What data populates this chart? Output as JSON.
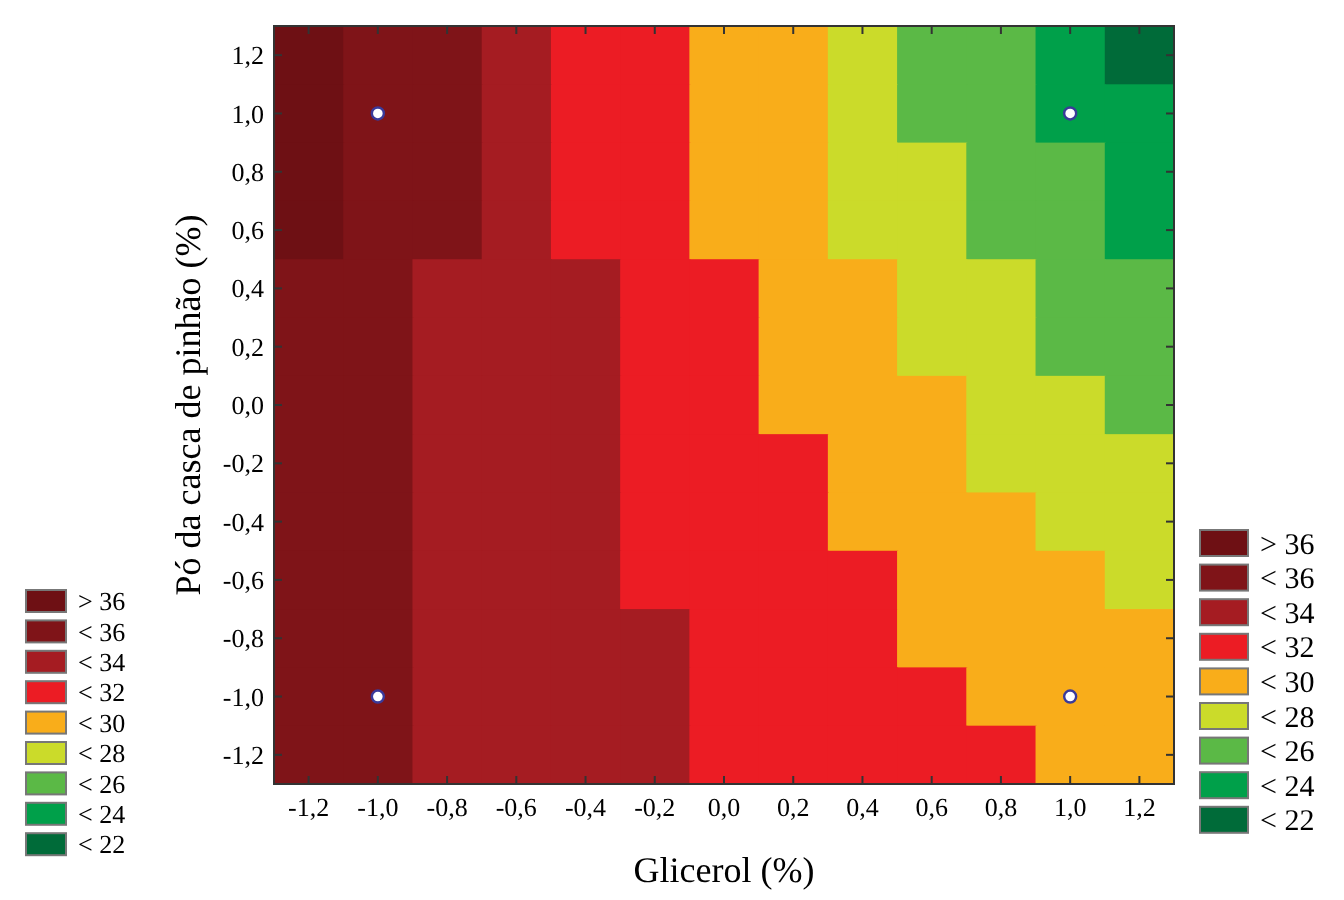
{
  "chart_data": {
    "type": "heatmap",
    "xlabel": "Glicerol (%)",
    "ylabel": "Pó da casca de pinhão (%)",
    "categories": [
      "-1,2",
      "-1,0",
      "-0,8",
      "-0,6",
      "-0,4",
      "-0,2",
      "0,0",
      "0,2",
      "0,4",
      "0,6",
      "0,8",
      "1,0",
      "1,2"
    ],
    "ylim": [
      -1.3,
      1.3
    ],
    "yticks": [
      {
        "value": -1.2,
        "label": "-1,2"
      },
      {
        "value": -1.0,
        "label": "-1,0"
      },
      {
        "value": -0.8,
        "label": "-0,8"
      },
      {
        "value": -0.6,
        "label": "-0,6"
      },
      {
        "value": -0.4,
        "label": "-0,4"
      },
      {
        "value": -0.2,
        "label": "-0,2"
      },
      {
        "value": 0,
        "label": "0,0"
      },
      {
        "value": 0.2,
        "label": "0,2"
      },
      {
        "value": 0.4,
        "label": "0,4"
      },
      {
        "value": 0.6,
        "label": "0,6"
      },
      {
        "value": 0.8,
        "label": "0,8"
      },
      {
        "value": 1.0,
        "label": "1,0"
      },
      {
        "value": 1.2,
        "label": "1,2"
      }
    ],
    "cells": [
      [
        38,
        36,
        36,
        34,
        32,
        32,
        30,
        30,
        28,
        26,
        26,
        24,
        22
      ],
      [
        38,
        36,
        36,
        34,
        32,
        32,
        30,
        30,
        28,
        26,
        26,
        24,
        24
      ],
      [
        38,
        36,
        36,
        34,
        32,
        32,
        30,
        30,
        28,
        28,
        26,
        26,
        24
      ],
      [
        38,
        36,
        36,
        34,
        32,
        32,
        30,
        30,
        28,
        28,
        26,
        26,
        24
      ],
      [
        36,
        36,
        34,
        34,
        34,
        32,
        32,
        30,
        30,
        28,
        28,
        26,
        26
      ],
      [
        36,
        36,
        34,
        34,
        34,
        32,
        32,
        30,
        30,
        28,
        28,
        26,
        26
      ],
      [
        36,
        36,
        34,
        34,
        34,
        32,
        32,
        30,
        30,
        30,
        28,
        28,
        26
      ],
      [
        36,
        36,
        34,
        34,
        34,
        32,
        32,
        32,
        30,
        30,
        28,
        28,
        28
      ],
      [
        36,
        36,
        34,
        34,
        34,
        32,
        32,
        32,
        30,
        30,
        30,
        28,
        28
      ],
      [
        36,
        36,
        34,
        34,
        34,
        32,
        32,
        32,
        32,
        30,
        30,
        30,
        28
      ],
      [
        36,
        36,
        34,
        34,
        34,
        34,
        32,
        32,
        32,
        30,
        30,
        30,
        30
      ],
      [
        36,
        36,
        34,
        34,
        34,
        34,
        32,
        32,
        32,
        32,
        30,
        30,
        30
      ],
      [
        36,
        36,
        34,
        34,
        34,
        34,
        32,
        32,
        32,
        32,
        32,
        30,
        30
      ]
    ],
    "cticks": [
      {
        "value": 38,
        "label": "> 36"
      },
      {
        "value": 36,
        "label": "< 36"
      },
      {
        "value": 34,
        "label": "< 34"
      },
      {
        "value": 32,
        "label": "< 32"
      },
      {
        "value": 30,
        "label": "< 30"
      },
      {
        "value": 28,
        "label": "< 28"
      },
      {
        "value": 26,
        "label": "< 26"
      },
      {
        "value": 24,
        "label": "< 24"
      },
      {
        "value": 22,
        "label": "< 22"
      }
    ],
    "colors": [
      "#6e1014",
      "#7f1418",
      "#a51c22",
      "#ec1c24",
      "#f9ad1a",
      "#cbdb2a",
      "#5bb946",
      "#00a04a",
      "#006b39"
    ],
    "series": [
      {
        "type": "scatter",
        "values": [
          null,
          1,
          null,
          null,
          null,
          null,
          null,
          null,
          null,
          null,
          null,
          1,
          null
        ],
        "color": "#ffffff",
        "marker": "circle"
      },
      {
        "type": "scatter",
        "values": [
          null,
          -1,
          null,
          null,
          null,
          null,
          null,
          null,
          null,
          null,
          null,
          -1,
          null
        ],
        "color": "#ffffff",
        "marker": "circle"
      }
    ]
  }
}
